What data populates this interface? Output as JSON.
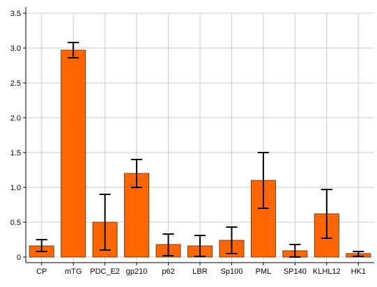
{
  "chart_data": {
    "type": "bar",
    "categories": [
      "CP",
      "mTG",
      "PDC_E2",
      "gp210",
      "p62",
      "LBR",
      "Sp100",
      "PML",
      "SP140",
      "KLHL12",
      "HK1"
    ],
    "values": [
      0.16,
      2.97,
      0.5,
      1.2,
      0.18,
      0.16,
      0.24,
      1.1,
      0.09,
      0.62,
      0.05
    ],
    "error_low": [
      0.08,
      2.86,
      0.1,
      1.0,
      0.02,
      0.01,
      0.05,
      0.7,
      0.0,
      0.27,
      0.01
    ],
    "error_high": [
      0.25,
      3.08,
      0.9,
      1.4,
      0.33,
      0.31,
      0.43,
      1.5,
      0.18,
      0.97,
      0.08
    ],
    "yticks": [
      "0",
      "0.5",
      "1.0",
      "1.5",
      "2.0",
      "2.5",
      "3.0",
      "3.5"
    ],
    "ylim": [
      0,
      3.6
    ],
    "grid": true,
    "bar_color": "#ff6600",
    "bar_edge_color": "#7a3a10",
    "errorbar_color": "#000000",
    "title": "",
    "xlabel": "",
    "ylabel": ""
  }
}
